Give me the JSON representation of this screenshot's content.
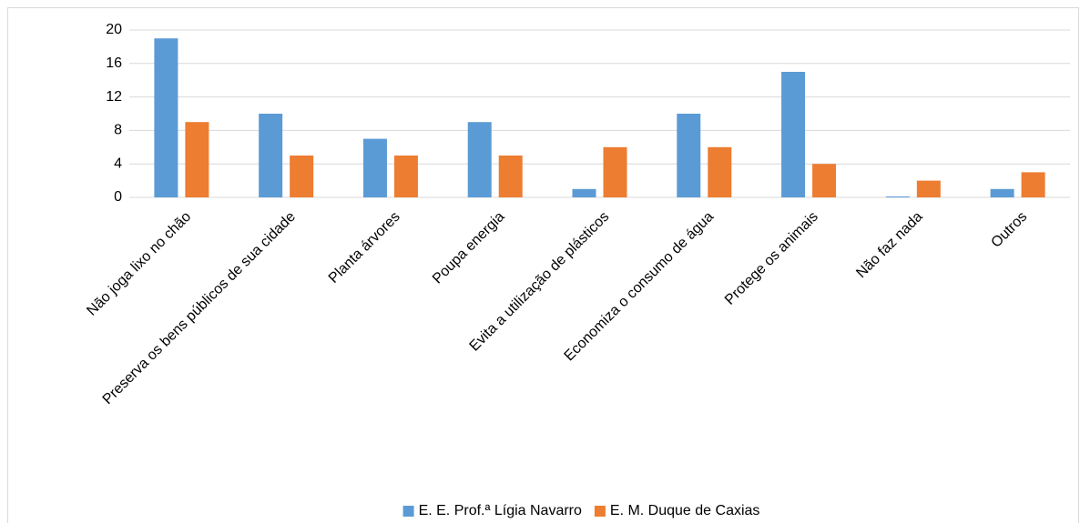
{
  "chart_data": {
    "type": "bar",
    "categories": [
      "Não joga lixo no chão",
      "Preserva os bens públicos de sua cidade",
      "Planta árvores",
      "Poupa energia",
      "Evita a utilização de plásticos",
      "Economiza o consumo de água",
      "Protege os animais",
      "Não faz nada",
      "Outros"
    ],
    "series": [
      {
        "name": "E. E. Prof.ª Lígia Navarro",
        "color": "#5b9bd5",
        "values": [
          19,
          10,
          7,
          9,
          1,
          10,
          15,
          0,
          1
        ]
      },
      {
        "name": "E. M. Duque de Caxias",
        "color": "#ed7d31",
        "values": [
          9,
          5,
          5,
          5,
          6,
          6,
          4,
          2,
          3
        ]
      }
    ],
    "ylim": [
      0,
      20
    ],
    "yticks": [
      0,
      4,
      8,
      12,
      16,
      20
    ],
    "grid": true,
    "legend": "bottom"
  }
}
